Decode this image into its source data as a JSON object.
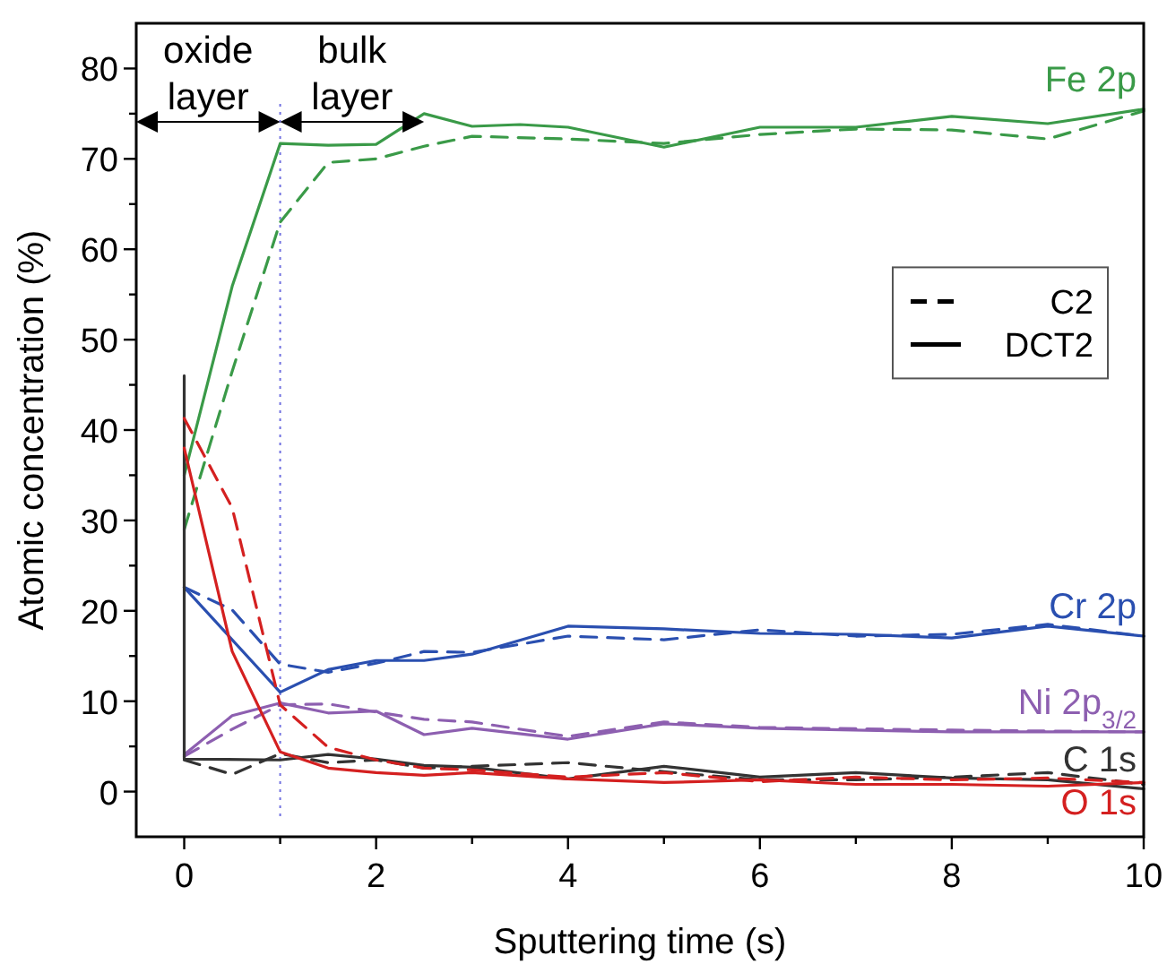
{
  "chart_data": {
    "type": "line",
    "xlabel": "Sputtering time (s)",
    "ylabel": "Atomic concentration (%)",
    "xlim": [
      -0.5,
      10
    ],
    "ylim": [
      -5,
      85
    ],
    "xticks": [
      0,
      {
        "value": 1,
        "label": null
      },
      2,
      {
        "value": 3,
        "label": null
      },
      4,
      {
        "value": 5,
        "label": null
      },
      6,
      {
        "value": 7,
        "label": null
      },
      8,
      {
        "value": 9,
        "label": null
      },
      10
    ],
    "yticks": [
      0,
      {
        "value": 5,
        "label": null
      },
      10,
      {
        "value": 15,
        "label": null
      },
      20,
      {
        "value": 25,
        "label": null
      },
      30,
      {
        "value": 35,
        "label": null
      },
      40,
      {
        "value": 45,
        "label": null
      },
      50,
      {
        "value": 55,
        "label": null
      },
      60,
      {
        "value": 65,
        "label": null
      },
      70,
      {
        "value": 75,
        "label": null
      },
      80
    ],
    "grid": false,
    "legend": "right",
    "marker": "none",
    "series": [
      {
        "color": "#3a9a48",
        "line_style": "dashed",
        "x": [
          0,
          0.5,
          1,
          1.5,
          2,
          2.5,
          3,
          4,
          5,
          6,
          7,
          8,
          9,
          10
        ],
        "values": [
          29,
          46.5,
          63,
          69.6,
          70,
          71.4,
          72.5,
          72.2,
          71.7,
          72.7,
          73.3,
          73.2,
          72.2,
          75.3
        ]
      },
      {
        "name": "Fe 2p",
        "color": "#3a9a48",
        "line_style": "solid",
        "x": [
          0,
          0.5,
          1,
          1.5,
          2,
          2.5,
          3,
          3.5,
          4,
          5,
          6,
          7,
          8,
          9,
          10
        ],
        "values": [
          35,
          55.9,
          71.7,
          71.5,
          71.6,
          75,
          73.6,
          73.8,
          73.5,
          71.3,
          73.5,
          73.5,
          74.7,
          73.9,
          75.5
        ]
      },
      {
        "color": "#2a4fb0",
        "line_style": "dashed",
        "x": [
          0,
          0.5,
          1,
          1.5,
          2,
          2.5,
          3,
          4,
          5,
          6,
          7,
          8,
          9,
          10
        ],
        "values": [
          22.6,
          20.1,
          14.1,
          13.2,
          14.2,
          15.5,
          15.4,
          17.2,
          16.8,
          17.9,
          17.2,
          17.4,
          18.5,
          17.2
        ]
      },
      {
        "name": "Cr 2p",
        "color": "#2a4fb0",
        "line_style": "solid",
        "x": [
          0,
          1,
          1.5,
          2,
          2.5,
          3,
          4,
          5,
          6,
          7,
          8,
          9,
          10
        ],
        "values": [
          22.6,
          11,
          13.5,
          14.5,
          14.5,
          15.2,
          18.3,
          18,
          17.5,
          17.4,
          17,
          18.3,
          17.2
        ]
      },
      {
        "color": "#8d5fb0",
        "line_style": "dashed",
        "x": [
          0,
          0.5,
          1,
          1.5,
          2,
          2.5,
          3,
          4,
          5,
          6,
          8,
          10
        ],
        "values": [
          3.9,
          6.9,
          9.6,
          9.7,
          8.8,
          8,
          7.7,
          6.1,
          7.7,
          7.1,
          6.8,
          6.6
        ]
      },
      {
        "name": "Ni 2p$_{3/2}$",
        "color": "#8d5fb0",
        "line_style": "solid",
        "x": [
          0,
          0.5,
          1,
          1.5,
          2,
          2.5,
          3,
          4,
          5,
          6,
          8,
          10
        ],
        "values": [
          4.1,
          8.4,
          9.8,
          8.7,
          8.9,
          6.3,
          7,
          5.8,
          7.5,
          7,
          6.6,
          6.6
        ]
      },
      {
        "color": "#333333",
        "line_style": "dashed",
        "x": [
          0,
          0.5,
          1,
          1.5,
          2,
          2.5,
          3,
          4,
          5,
          6,
          7,
          8,
          9,
          10
        ],
        "values": [
          3.5,
          1.9,
          4.2,
          3.2,
          3.5,
          2.6,
          2.8,
          3.2,
          2.2,
          1.3,
          1.3,
          1.6,
          2.1,
          0.8
        ]
      },
      {
        "name": "C 1s",
        "color": "#333333",
        "line_style": "solid",
        "x": [
          0,
          0,
          1,
          1.5,
          2,
          2.5,
          3,
          4,
          5,
          6,
          7,
          8,
          9,
          10
        ],
        "values": [
          46,
          3.6,
          3.5,
          4.1,
          3.6,
          2.9,
          2.7,
          1.4,
          2.8,
          1.6,
          2.1,
          1.5,
          1.3,
          0.3
        ]
      },
      {
        "color": "#d42020",
        "line_style": "dashed",
        "x": [
          0,
          0.5,
          1,
          1.5,
          2,
          2.5,
          3,
          4,
          5,
          6,
          7,
          8,
          9,
          10
        ],
        "values": [
          41.3,
          31.4,
          9.6,
          4.9,
          3.5,
          2.6,
          2.4,
          1.6,
          2.1,
          1.1,
          1.6,
          1.3,
          1.5,
          1
        ]
      },
      {
        "name": "O 1s",
        "color": "#d42020",
        "line_style": "solid",
        "x": [
          0,
          0.5,
          1,
          1.5,
          2,
          2.5,
          3,
          4,
          5,
          6,
          7,
          8,
          9,
          10
        ],
        "values": [
          38,
          15.5,
          4.4,
          2.6,
          2.1,
          1.8,
          2.1,
          1.4,
          1,
          1.3,
          0.8,
          0.8,
          0.6,
          1
        ]
      }
    ],
    "ref_lines": [
      {
        "axis": "x",
        "value": 1,
        "color": "#7070e0",
        "line_style": "dotted"
      }
    ],
    "annotations": [
      "oxide layer",
      "bulk layer",
      "C2",
      "DCT2"
    ]
  }
}
